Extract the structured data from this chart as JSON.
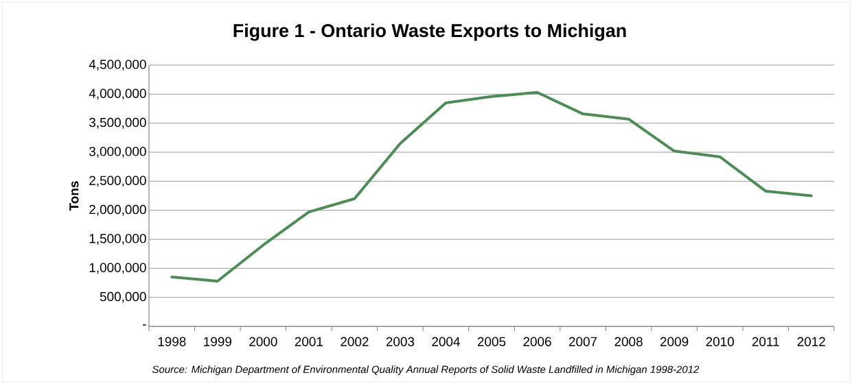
{
  "chart_data": {
    "type": "line",
    "title": "Figure 1 - Ontario Waste Exports to Michigan",
    "ylabel": "Tons",
    "categories": [
      "1998",
      "1999",
      "2000",
      "2001",
      "2002",
      "2003",
      "2004",
      "2005",
      "2006",
      "2007",
      "2008",
      "2009",
      "2010",
      "2011",
      "2012"
    ],
    "values": [
      850000,
      780000,
      1400000,
      1970000,
      2200000,
      3150000,
      3850000,
      3960000,
      4030000,
      3660000,
      3570000,
      3020000,
      2920000,
      2330000,
      2250000
    ],
    "color": "#4e8b57",
    "ylim": [
      0,
      4500000
    ],
    "yticks": [
      {
        "value": 0,
        "label": "-"
      },
      {
        "value": 500000,
        "label": "500,000"
      },
      {
        "value": 1000000,
        "label": "1,000,000"
      },
      {
        "value": 1500000,
        "label": "1,500,000"
      },
      {
        "value": 2000000,
        "label": "2,000,000"
      },
      {
        "value": 2500000,
        "label": "2,500,000"
      },
      {
        "value": 3000000,
        "label": "3,000,000"
      },
      {
        "value": 3500000,
        "label": "3,500,000"
      },
      {
        "value": 4000000,
        "label": "4,000,000"
      },
      {
        "value": 4500000,
        "label": "4,500,000"
      }
    ],
    "grid": "y",
    "marker": "none",
    "line_style": "solid",
    "annotations": [
      "*Source: Michigan Department of Environmental Quality Annual Reports of Solid Waste Landfilled in Michigan 1998-2012*"
    ]
  }
}
